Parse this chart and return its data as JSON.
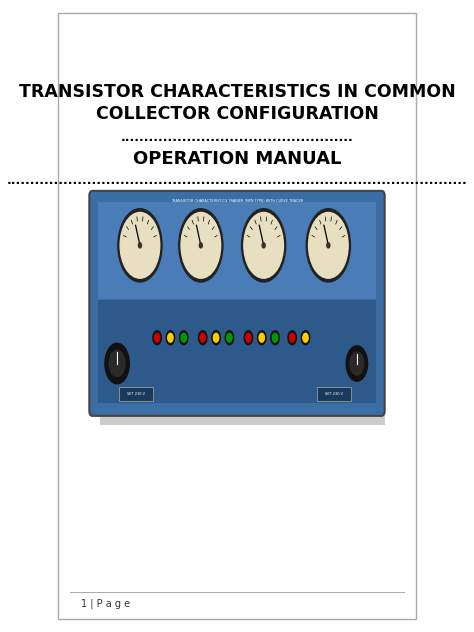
{
  "title_line1": "TRANSISTOR CHARACTERISTICS IN COMMON",
  "title_line2": "COLLECTOR CONFIGURATION",
  "dots_short": ".................................................",
  "subtitle": "OPERATION MANUAL",
  "dots_long": ".................................................................................................",
  "footer": "1 | P a g e",
  "bg_color": "#ffffff",
  "border_color": "#aaaaaa",
  "title_fontsize": 12.5,
  "subtitle_fontsize": 13,
  "footer_fontsize": 7,
  "dots_short_fontsize": 9,
  "dots_long_fontsize": 9
}
